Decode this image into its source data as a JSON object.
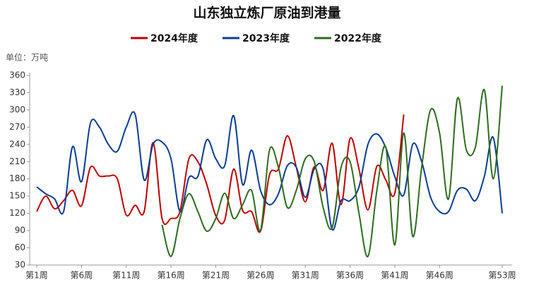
{
  "chart_data": {
    "type": "line",
    "title": "山东独立炼厂原油到港量",
    "unit_label": "单位：万吨",
    "categories": [
      "第1周",
      null,
      null,
      null,
      null,
      "第6周",
      null,
      null,
      null,
      null,
      "第11周",
      null,
      null,
      null,
      null,
      "第16周",
      null,
      null,
      null,
      null,
      "第21周",
      null,
      null,
      null,
      null,
      "第26周",
      null,
      null,
      null,
      null,
      "第31周",
      null,
      null,
      null,
      null,
      "第36周",
      null,
      null,
      null,
      null,
      "第41周",
      null,
      null,
      null,
      null,
      "第46周",
      null,
      null,
      null,
      null,
      null,
      null,
      "第53周"
    ],
    "series": [
      {
        "name": "2024年度",
        "color": "#c00000",
        "values": [
          123,
          150,
          128,
          142,
          160,
          133,
          200,
          185,
          185,
          180,
          117,
          134,
          123,
          243,
          111,
          111,
          123,
          215,
          210,
          170,
          116,
          108,
          197,
          125,
          123,
          89,
          187,
          197,
          255,
          200,
          140,
          201,
          160,
          242,
          135,
          250,
          197,
          126,
          202,
          178,
          155,
          292,
          null,
          null,
          null,
          null,
          null,
          null,
          null,
          null,
          null,
          null,
          null
        ]
      },
      {
        "name": "2023年度",
        "color": "#0b3d91",
        "values": [
          166,
          154,
          145,
          123,
          236,
          175,
          277,
          270,
          240,
          228,
          270,
          292,
          178,
          240,
          244,
          215,
          123,
          182,
          184,
          248,
          215,
          203,
          290,
          170,
          230,
          160,
          135,
          154,
          203,
          200,
          148,
          197,
          197,
          92,
          142,
          142,
          166,
          240,
          258,
          234,
          184,
          152,
          240,
          210,
          148,
          123,
          123,
          160,
          162,
          142,
          184,
          252,
          120
        ]
      },
      {
        "name": "2022年度",
        "color": "#2e6b1f",
        "values": [
          null,
          null,
          null,
          null,
          null,
          null,
          null,
          null,
          null,
          null,
          null,
          null,
          null,
          null,
          100,
          45,
          111,
          154,
          123,
          89,
          111,
          155,
          111,
          135,
          160,
          90,
          230,
          200,
          130,
          160,
          215,
          210,
          130,
          95,
          200,
          210,
          120,
          45,
          160,
          235,
          65,
          260,
          80,
          200,
          300,
          260,
          145,
          320,
          230,
          235,
          335,
          180,
          342
        ]
      }
    ],
    "ylim": [
      30,
      360
    ],
    "yticks": [
      30,
      60,
      90,
      120,
      150,
      180,
      210,
      240,
      270,
      300,
      330,
      360
    ],
    "grid": false
  }
}
